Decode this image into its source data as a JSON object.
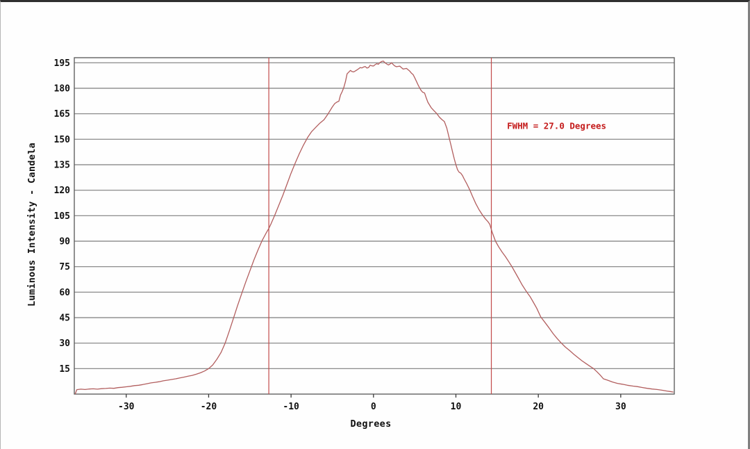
{
  "chart_data": {
    "type": "line",
    "title": "",
    "xlabel": "Degrees",
    "ylabel": "Luminous Intensity - Candela",
    "xlim": [
      -36.3,
      36.5
    ],
    "ylim": [
      0,
      198
    ],
    "x_ticks": [
      -30,
      -20,
      -10,
      0,
      10,
      20,
      30
    ],
    "y_ticks": [
      15,
      30,
      45,
      60,
      75,
      90,
      105,
      120,
      135,
      150,
      165,
      180,
      195
    ],
    "grid": "horizontal-only",
    "legend": "none",
    "annotation": {
      "text": "FWHM = 27.0 Degrees",
      "color": "#c41b1b",
      "x_deg": 16.2,
      "y_cd": 158
    },
    "fwhm_markers_deg": [
      -12.7,
      14.3
    ],
    "colors": {
      "curve": "#b25e5e",
      "marker_line": "#c24a4a",
      "grid": "#7d7d7d",
      "frame": "#565656",
      "tick": "#3a3a3a",
      "text": "#101010",
      "background": "#fefefe"
    },
    "series": [
      {
        "name": "luminous-intensity-vs-angle",
        "points": [
          [
            -36.2,
            0
          ],
          [
            -36.0,
            2.6
          ],
          [
            -35.5,
            2.9
          ],
          [
            -35.0,
            2.7
          ],
          [
            -34.5,
            3.0
          ],
          [
            -34.0,
            3.1
          ],
          [
            -33.5,
            2.9
          ],
          [
            -33.0,
            3.2
          ],
          [
            -32.5,
            3.3
          ],
          [
            -32.0,
            3.5
          ],
          [
            -31.5,
            3.4
          ],
          [
            -31.0,
            3.8
          ],
          [
            -30.5,
            4.0
          ],
          [
            -30.0,
            4.3
          ],
          [
            -29.5,
            4.6
          ],
          [
            -29.0,
            5.0
          ],
          [
            -28.5,
            5.2
          ],
          [
            -28.0,
            5.6
          ],
          [
            -27.5,
            6.1
          ],
          [
            -27.0,
            6.6
          ],
          [
            -26.5,
            6.9
          ],
          [
            -26.0,
            7.3
          ],
          [
            -25.5,
            7.8
          ],
          [
            -25.0,
            8.2
          ],
          [
            -24.5,
            8.6
          ],
          [
            -24.0,
            9.0
          ],
          [
            -23.5,
            9.5
          ],
          [
            -23.0,
            10.0
          ],
          [
            -22.5,
            10.5
          ],
          [
            -22.0,
            11.0
          ],
          [
            -21.5,
            11.7
          ],
          [
            -21.0,
            12.5
          ],
          [
            -20.5,
            13.6
          ],
          [
            -20.0,
            15.0
          ],
          [
            -19.5,
            17.2
          ],
          [
            -19.0,
            20.5
          ],
          [
            -18.5,
            24.5
          ],
          [
            -18.0,
            30.0
          ],
          [
            -17.5,
            37.0
          ],
          [
            -17.0,
            44.5
          ],
          [
            -16.5,
            52.0
          ],
          [
            -16.0,
            59.0
          ],
          [
            -15.5,
            66.0
          ],
          [
            -15.0,
            72.5
          ],
          [
            -14.5,
            79.0
          ],
          [
            -14.0,
            85.0
          ],
          [
            -13.5,
            90.5
          ],
          [
            -13.0,
            95.0
          ],
          [
            -12.7,
            97.5
          ],
          [
            -12.4,
            100.5
          ],
          [
            -12.0,
            105.0
          ],
          [
            -11.5,
            111.0
          ],
          [
            -11.0,
            117.0
          ],
          [
            -10.5,
            123.5
          ],
          [
            -10.0,
            130.0
          ],
          [
            -9.5,
            136.0
          ],
          [
            -9.0,
            141.5
          ],
          [
            -8.5,
            146.5
          ],
          [
            -8.0,
            151.0
          ],
          [
            -7.5,
            154.5
          ],
          [
            -7.0,
            157.0
          ],
          [
            -6.5,
            159.5
          ],
          [
            -6.0,
            161.5
          ],
          [
            -5.5,
            165.0
          ],
          [
            -5.0,
            169.0
          ],
          [
            -4.7,
            171.0
          ],
          [
            -4.4,
            172.0
          ],
          [
            -4.2,
            172.4
          ],
          [
            -4.0,
            176.0
          ],
          [
            -3.8,
            178.0
          ],
          [
            -3.6,
            180.5
          ],
          [
            -3.4,
            184.0
          ],
          [
            -3.2,
            188.5
          ],
          [
            -3.0,
            189.5
          ],
          [
            -2.8,
            190.5
          ],
          [
            -2.6,
            189.8
          ],
          [
            -2.4,
            189.6
          ],
          [
            -2.2,
            190.2
          ],
          [
            -2.0,
            190.8
          ],
          [
            -1.8,
            191.5
          ],
          [
            -1.6,
            192.2
          ],
          [
            -1.4,
            192.0
          ],
          [
            -1.2,
            192.5
          ],
          [
            -1.0,
            192.8
          ],
          [
            -0.8,
            191.9
          ],
          [
            -0.6,
            192.2
          ],
          [
            -0.4,
            193.6
          ],
          [
            -0.2,
            193.2
          ],
          [
            0.0,
            193.1
          ],
          [
            0.2,
            193.9
          ],
          [
            0.4,
            194.5
          ],
          [
            0.6,
            194.1
          ],
          [
            0.8,
            195.2
          ],
          [
            1.0,
            195.8
          ],
          [
            1.2,
            196.0
          ],
          [
            1.4,
            195.0
          ],
          [
            1.6,
            194.3
          ],
          [
            1.8,
            193.7
          ],
          [
            2.0,
            194.2
          ],
          [
            2.2,
            195.0
          ],
          [
            2.4,
            193.9
          ],
          [
            2.6,
            193.1
          ],
          [
            2.8,
            192.7
          ],
          [
            3.0,
            192.9
          ],
          [
            3.2,
            193.0
          ],
          [
            3.4,
            192.1
          ],
          [
            3.6,
            191.3
          ],
          [
            3.8,
            191.5
          ],
          [
            4.0,
            191.7
          ],
          [
            4.2,
            190.9
          ],
          [
            4.4,
            190.1
          ],
          [
            4.6,
            188.9
          ],
          [
            4.8,
            188.1
          ],
          [
            5.0,
            186.2
          ],
          [
            5.2,
            184.2
          ],
          [
            5.4,
            182.1
          ],
          [
            5.6,
            180.2
          ],
          [
            5.8,
            178.6
          ],
          [
            6.0,
            177.6
          ],
          [
            6.2,
            177.2
          ],
          [
            6.4,
            174.3
          ],
          [
            6.6,
            171.8
          ],
          [
            6.8,
            170.2
          ],
          [
            7.0,
            168.6
          ],
          [
            7.3,
            167.0
          ],
          [
            7.7,
            165.0
          ],
          [
            8.0,
            163.0
          ],
          [
            8.3,
            161.6
          ],
          [
            8.6,
            160.4
          ],
          [
            8.9,
            156.5
          ],
          [
            9.2,
            150.5
          ],
          [
            9.4,
            146.5
          ],
          [
            9.6,
            142.5
          ],
          [
            9.8,
            138.5
          ],
          [
            10.0,
            135.0
          ],
          [
            10.2,
            132.0
          ],
          [
            10.4,
            130.6
          ],
          [
            10.6,
            130.0
          ],
          [
            10.8,
            128.6
          ],
          [
            11.0,
            126.6
          ],
          [
            11.3,
            124.0
          ],
          [
            11.7,
            120.0
          ],
          [
            12.0,
            116.6
          ],
          [
            12.4,
            112.2
          ],
          [
            12.8,
            108.6
          ],
          [
            13.2,
            105.6
          ],
          [
            13.6,
            103.0
          ],
          [
            13.9,
            101.4
          ],
          [
            14.1,
            100.0
          ],
          [
            14.4,
            95.3
          ],
          [
            14.8,
            90.0
          ],
          [
            15.2,
            86.6
          ],
          [
            15.6,
            83.6
          ],
          [
            16.0,
            81.0
          ],
          [
            16.4,
            78.0
          ],
          [
            16.8,
            75.0
          ],
          [
            17.2,
            71.6
          ],
          [
            17.6,
            68.1
          ],
          [
            18.0,
            64.6
          ],
          [
            18.6,
            60.0
          ],
          [
            19.0,
            57.4
          ],
          [
            19.4,
            54.0
          ],
          [
            19.8,
            50.6
          ],
          [
            20.3,
            45.4
          ],
          [
            20.8,
            42.2
          ],
          [
            21.3,
            39.0
          ],
          [
            21.8,
            35.6
          ],
          [
            22.3,
            32.6
          ],
          [
            22.8,
            30.0
          ],
          [
            23.3,
            27.6
          ],
          [
            23.8,
            25.6
          ],
          [
            24.3,
            23.5
          ],
          [
            24.8,
            21.5
          ],
          [
            25.3,
            19.6
          ],
          [
            25.8,
            17.9
          ],
          [
            26.3,
            16.3
          ],
          [
            26.7,
            15.0
          ],
          [
            27.1,
            13.2
          ],
          [
            27.5,
            11.2
          ],
          [
            27.9,
            9.0
          ],
          [
            28.4,
            8.2
          ],
          [
            29.0,
            7.1
          ],
          [
            29.6,
            6.3
          ],
          [
            30.2,
            5.8
          ],
          [
            30.8,
            5.2
          ],
          [
            31.5,
            4.7
          ],
          [
            32.0,
            4.4
          ],
          [
            32.6,
            3.9
          ],
          [
            33.2,
            3.4
          ],
          [
            33.8,
            3.0
          ],
          [
            34.4,
            2.7
          ],
          [
            35.0,
            2.3
          ],
          [
            35.6,
            1.8
          ],
          [
            36.0,
            1.5
          ],
          [
            36.4,
            1.2
          ]
        ]
      }
    ]
  }
}
